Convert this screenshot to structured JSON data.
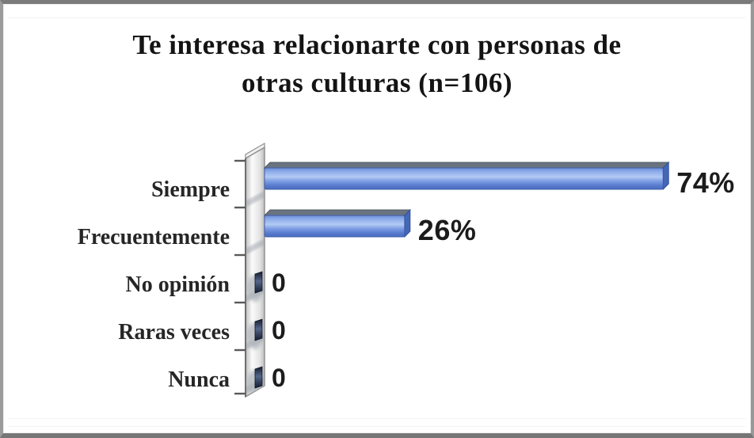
{
  "chart_data": {
    "type": "bar",
    "orientation": "horizontal",
    "style": "3d",
    "title": "Te interesa relacionarte con personas de otras culturas (n=106)",
    "title_lines": [
      "Te interesa relacionarte con personas de",
      "otras culturas (n=106)"
    ],
    "sample_size": "n=106",
    "categories": [
      "Siempre",
      "Frecuentemente",
      "No opinión",
      "Raras veces",
      "Nunca"
    ],
    "values": [
      74,
      26,
      0,
      0,
      0
    ],
    "value_labels": [
      "74%",
      "26%",
      "0",
      "0",
      "0"
    ],
    "xlim": [
      0,
      100
    ],
    "grid": false,
    "legend": false,
    "colors": {
      "bar_fill": "#7d9ce4",
      "bar_highlight": "#b2caf4",
      "bar_shade": "#5578cb",
      "bar_edge": "#3d5ca8",
      "bar_top_face": "#6a7480",
      "bar_top_face_edge": "#4e5763",
      "bar_cap": "#4467b6",
      "zero_marker_dark": "#141c2e",
      "zero_marker_light": "#55668a",
      "wall_border": "#8f8f8f",
      "wall_light": "#fbfbfb",
      "wall_mid": "#e3e3e3",
      "wall_dark": "#bdbdbd",
      "tick": "#5a5a5a",
      "title_text": "#141414",
      "category_text": "#262626",
      "value_text": "#1c1c1c",
      "background": "#ffffff",
      "frame_border": "#7b7b7b"
    }
  }
}
